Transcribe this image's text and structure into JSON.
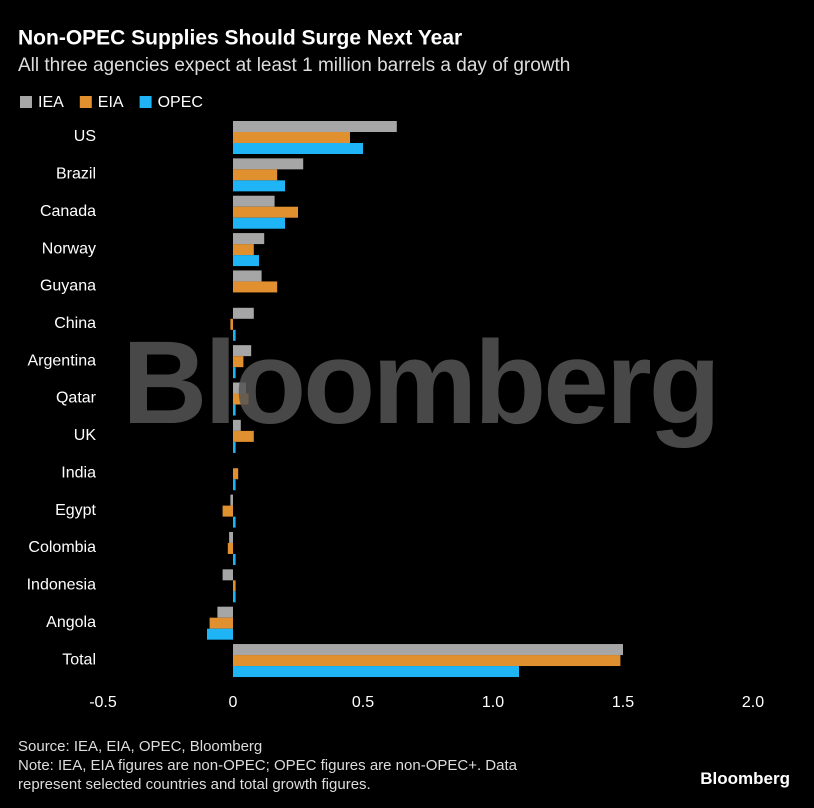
{
  "chart_data": {
    "type": "hbar",
    "title": "Non-OPEC Supplies Should Surge Next Year",
    "subtitle": "All three agencies expect at least 1 million barrels a day of growth",
    "categories": [
      "US",
      "Brazil",
      "Canada",
      "Norway",
      "Guyana",
      "China",
      "Argentina",
      "Qatar",
      "UK",
      "India",
      "Egypt",
      "Colombia",
      "Indonesia",
      "Angola",
      "Total"
    ],
    "series": [
      {
        "name": "IEA",
        "color": "#a6a6a6",
        "values": [
          0.63,
          0.27,
          0.16,
          0.12,
          0.11,
          0.08,
          0.07,
          0.05,
          0.03,
          0.0,
          -0.01,
          -0.015,
          -0.04,
          -0.06,
          1.5
        ]
      },
      {
        "name": "EIA",
        "color": "#e0902e",
        "values": [
          0.45,
          0.17,
          0.25,
          0.08,
          0.17,
          -0.01,
          0.04,
          0.06,
          0.08,
          0.02,
          -0.04,
          -0.02,
          0.01,
          -0.09,
          1.49
        ]
      },
      {
        "name": "OPEC",
        "color": "#1eb4f5",
        "values": [
          0.5,
          0.2,
          0.2,
          0.1,
          0.0,
          0.01,
          0.01,
          0.01,
          0.01,
          0.01,
          0.01,
          0.01,
          0.01,
          -0.1,
          1.1
        ]
      }
    ],
    "xlim": [
      -0.5,
      2.0
    ],
    "xticks": [
      -0.5,
      0,
      0.5,
      {
        "value": 1.0,
        "label": "1.0"
      },
      1.5,
      {
        "value": 2.0,
        "label": "2.0"
      }
    ],
    "watermark": "Bloomberg",
    "source": "Source: IEA, EIA, OPEC, Bloomberg",
    "note": "Note: IEA, EIA figures are non-OPEC; OPEC figures are non-OPEC+. Data represent selected countries and total growth figures.",
    "logo": "Bloomberg"
  }
}
